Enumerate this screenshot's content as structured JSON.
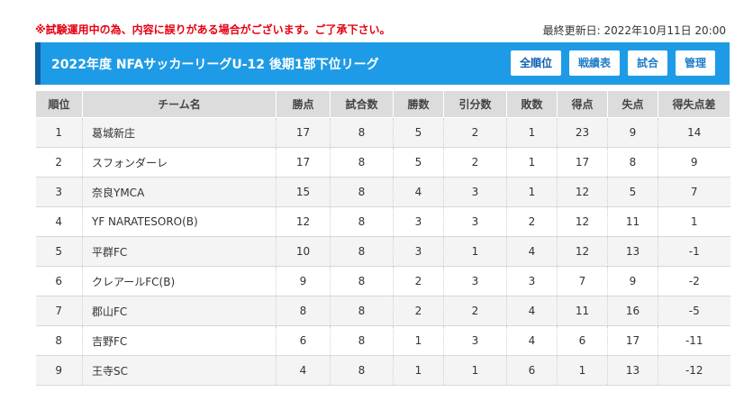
{
  "notice": "※試験運用中の為、内容に誤りがある場合がございます。ご了承下さい。",
  "updated": "最終更新日: 2022年10月11日 20:00",
  "league_title": "2022年度 NFAサッカーリーグU-12 後期1部下位リーグ",
  "buttons": {
    "standings": "全順位",
    "results": "戦績表",
    "matches": "試合",
    "admin": "管理"
  },
  "columns": [
    "順位",
    "チーム名",
    "勝点",
    "試合数",
    "勝数",
    "引分数",
    "敗数",
    "得点",
    "失点",
    "得失点差"
  ],
  "rows": [
    [
      "1",
      "葛城新庄",
      "17",
      "8",
      "5",
      "2",
      "1",
      "23",
      "9",
      "14"
    ],
    [
      "2",
      "スフォンダーレ",
      "17",
      "8",
      "5",
      "2",
      "1",
      "17",
      "8",
      "9"
    ],
    [
      "3",
      "奈良YMCA",
      "15",
      "8",
      "4",
      "3",
      "1",
      "12",
      "5",
      "7"
    ],
    [
      "4",
      "YF NARATESORO(B)",
      "12",
      "8",
      "3",
      "3",
      "2",
      "12",
      "11",
      "1"
    ],
    [
      "5",
      "平群FC",
      "10",
      "8",
      "3",
      "1",
      "4",
      "12",
      "13",
      "-1"
    ],
    [
      "6",
      "クレアールFC(B)",
      "9",
      "8",
      "2",
      "3",
      "3",
      "7",
      "9",
      "-2"
    ],
    [
      "7",
      "郡山FC",
      "8",
      "8",
      "2",
      "2",
      "4",
      "11",
      "16",
      "-5"
    ],
    [
      "8",
      "吉野FC",
      "6",
      "8",
      "1",
      "3",
      "4",
      "6",
      "17",
      "-11"
    ],
    [
      "9",
      "王寺SC",
      "4",
      "8",
      "1",
      "1",
      "6",
      "1",
      "13",
      "-12"
    ]
  ]
}
